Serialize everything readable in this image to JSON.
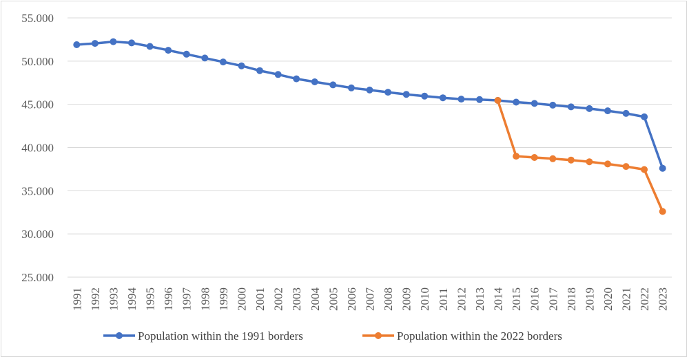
{
  "chart_data": {
    "type": "line",
    "title": "",
    "xlabel": "",
    "ylabel": "",
    "ylim": [
      25000,
      55000
    ],
    "y_ticks": [
      "25.000",
      "30.000",
      "35.000",
      "40.000",
      "45.000",
      "50.000",
      "55.000"
    ],
    "y_tick_values": [
      25000,
      30000,
      35000,
      40000,
      45000,
      50000,
      55000
    ],
    "grid": true,
    "legend_position": "bottom",
    "categories": [
      "1991",
      "1992",
      "1993",
      "1994",
      "1995",
      "1996",
      "1997",
      "1998",
      "1999",
      "2000",
      "2001",
      "2002",
      "2003",
      "2004",
      "2005",
      "2006",
      "2007",
      "2008",
      "2009",
      "2010",
      "2011",
      "2012",
      "2013",
      "2014",
      "2015",
      "2016",
      "2017",
      "2018",
      "2019",
      "2020",
      "2021",
      "2022",
      "2023"
    ],
    "series": [
      {
        "name": "Population within the 1991 borders",
        "color": "#4472c4",
        "values": [
          51900,
          52050,
          52250,
          52100,
          51700,
          51250,
          50800,
          50350,
          49900,
          49450,
          48900,
          48450,
          47950,
          47600,
          47250,
          46900,
          46650,
          46400,
          46150,
          45950,
          45750,
          45600,
          45550,
          45450,
          45250,
          45100,
          44900,
          44700,
          44500,
          44250,
          43950,
          43550,
          37600
        ]
      },
      {
        "name": "Population within the 2022 borders",
        "color": "#ed7d31",
        "values": [
          null,
          null,
          null,
          null,
          null,
          null,
          null,
          null,
          null,
          null,
          null,
          null,
          null,
          null,
          null,
          null,
          null,
          null,
          null,
          null,
          null,
          null,
          null,
          45450,
          39000,
          38850,
          38700,
          38550,
          38350,
          38100,
          37800,
          37450,
          32600
        ]
      }
    ]
  }
}
